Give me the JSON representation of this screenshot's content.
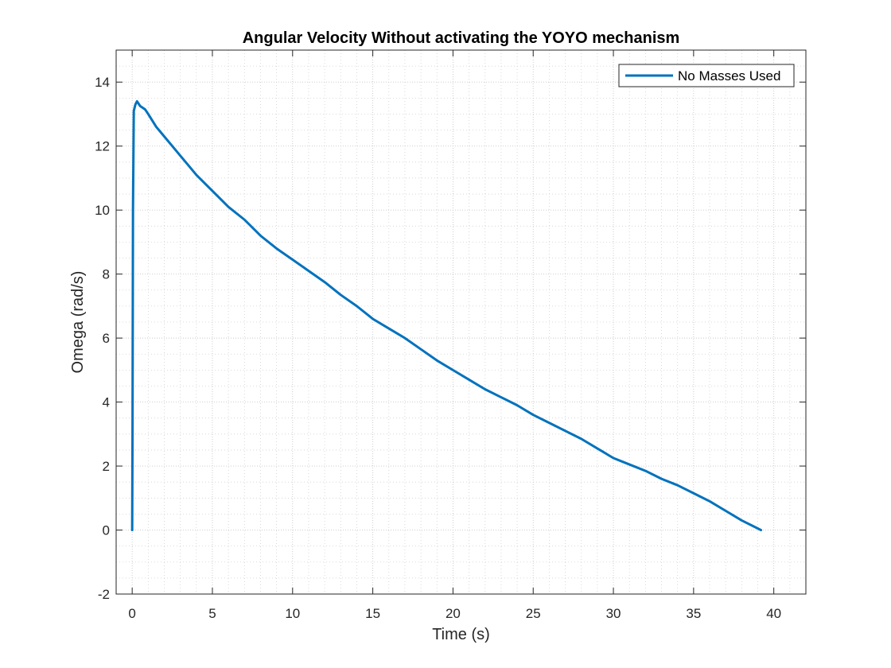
{
  "chart_data": {
    "type": "line",
    "title": "Angular Velocity Without activating the YOYO mechanism",
    "xlabel": "Time (s)",
    "ylabel": "Omega (rad/s)",
    "xlim": [
      -1,
      42
    ],
    "ylim": [
      -2,
      15
    ],
    "xticks": [
      0,
      5,
      10,
      15,
      20,
      25,
      30,
      35,
      40
    ],
    "yticks": [
      -2,
      0,
      2,
      4,
      6,
      8,
      10,
      12,
      14
    ],
    "xtick_labels": [
      "0",
      "5",
      "10",
      "15",
      "20",
      "25",
      "30",
      "35",
      "40"
    ],
    "ytick_labels": [
      "-2",
      "0",
      "2",
      "4",
      "6",
      "8",
      "10",
      "12",
      "14"
    ],
    "grid": true,
    "minor_grid": true,
    "legend_position": "top-right",
    "series": [
      {
        "name": "No Masses Used",
        "color": "#0072BD",
        "x": [
          0,
          0.02,
          0.05,
          0.1,
          0.2,
          0.3,
          0.5,
          0.8,
          1.0,
          1.5,
          2.0,
          2.5,
          3.0,
          3.5,
          4.0,
          5.0,
          6.0,
          7.0,
          8.0,
          9.0,
          10.0,
          11.0,
          12.0,
          13.0,
          14.0,
          15.0,
          16.0,
          17.0,
          18.0,
          19.0,
          20.0,
          21.0,
          22.0,
          23.0,
          24.0,
          25.0,
          26.0,
          27.0,
          28.0,
          29.0,
          30.0,
          31.0,
          32.0,
          33.0,
          34.0,
          35.0,
          36.0,
          37.0,
          38.0,
          39.0,
          39.2
        ],
        "y": [
          0,
          3.0,
          10.0,
          13.1,
          13.3,
          13.4,
          13.25,
          13.15,
          13.0,
          12.6,
          12.3,
          12.0,
          11.7,
          11.4,
          11.1,
          10.6,
          10.1,
          9.7,
          9.2,
          8.8,
          8.45,
          8.1,
          7.75,
          7.35,
          7.0,
          6.6,
          6.3,
          6.0,
          5.65,
          5.3,
          5.0,
          4.7,
          4.4,
          4.15,
          3.9,
          3.6,
          3.35,
          3.1,
          2.85,
          2.55,
          2.25,
          2.05,
          1.85,
          1.6,
          1.4,
          1.15,
          0.9,
          0.6,
          0.3,
          0.05,
          0.0
        ]
      }
    ]
  }
}
